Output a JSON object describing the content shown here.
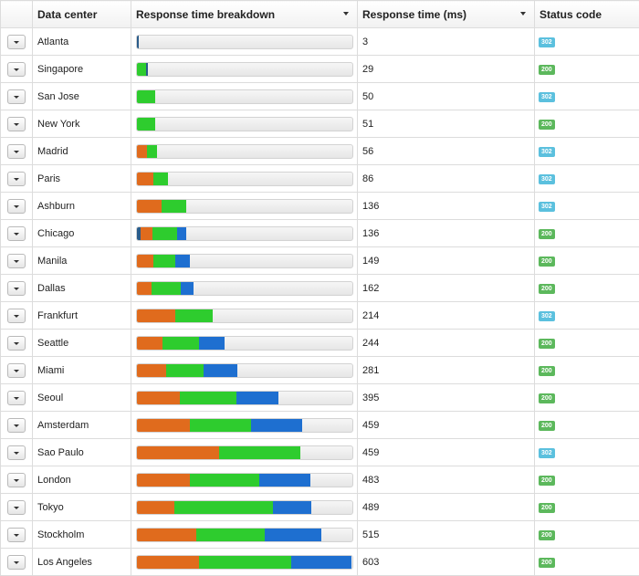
{
  "colors": {
    "dns": "#e06b1d",
    "connect": "#2ecc2e",
    "transfer": "#1e6fd0",
    "extra": "#2a5c8a",
    "status_200": "#5cb85c",
    "status_302": "#5bc0de"
  },
  "headers": {
    "data_center": "Data center",
    "breakdown": "Response time breakdown",
    "response_time": "Response time (ms)",
    "status": "Status code"
  },
  "max_time": 603,
  "rows": [
    {
      "name": "Atlanta",
      "time": "3",
      "status": "302",
      "segments": [
        {
          "c": "extra",
          "v": 3
        }
      ]
    },
    {
      "name": "Singapore",
      "time": "29",
      "status": "200",
      "segments": [
        {
          "c": "connect",
          "v": 25
        },
        {
          "c": "extra",
          "v": 4
        }
      ]
    },
    {
      "name": "San Jose",
      "time": "50",
      "status": "302",
      "segments": [
        {
          "c": "connect",
          "v": 50
        }
      ]
    },
    {
      "name": "New York",
      "time": "51",
      "status": "200",
      "segments": [
        {
          "c": "connect",
          "v": 51
        }
      ]
    },
    {
      "name": "Madrid",
      "time": "56",
      "status": "302",
      "segments": [
        {
          "c": "dns",
          "v": 27
        },
        {
          "c": "connect",
          "v": 29
        }
      ]
    },
    {
      "name": "Paris",
      "time": "86",
      "status": "302",
      "segments": [
        {
          "c": "dns",
          "v": 45
        },
        {
          "c": "connect",
          "v": 41
        }
      ]
    },
    {
      "name": "Ashburn",
      "time": "136",
      "status": "302",
      "segments": [
        {
          "c": "dns",
          "v": 68
        },
        {
          "c": "connect",
          "v": 68
        }
      ]
    },
    {
      "name": "Chicago",
      "time": "136",
      "status": "200",
      "segments": [
        {
          "c": "extra",
          "v": 10
        },
        {
          "c": "dns",
          "v": 33
        },
        {
          "c": "connect",
          "v": 68
        },
        {
          "c": "transfer",
          "v": 25
        }
      ]
    },
    {
      "name": "Manila",
      "time": "149",
      "status": "200",
      "segments": [
        {
          "c": "dns",
          "v": 46
        },
        {
          "c": "connect",
          "v": 61
        },
        {
          "c": "transfer",
          "v": 42
        }
      ]
    },
    {
      "name": "Dallas",
      "time": "162",
      "status": "200",
      "segments": [
        {
          "c": "dns",
          "v": 42
        },
        {
          "c": "connect",
          "v": 83
        },
        {
          "c": "transfer",
          "v": 37
        }
      ]
    },
    {
      "name": "Frankfurt",
      "time": "214",
      "status": "302",
      "segments": [
        {
          "c": "dns",
          "v": 108
        },
        {
          "c": "connect",
          "v": 106
        }
      ]
    },
    {
      "name": "Seattle",
      "time": "244",
      "status": "200",
      "segments": [
        {
          "c": "dns",
          "v": 72
        },
        {
          "c": "connect",
          "v": 101
        },
        {
          "c": "transfer",
          "v": 71
        }
      ]
    },
    {
      "name": "Miami",
      "time": "281",
      "status": "200",
      "segments": [
        {
          "c": "dns",
          "v": 83
        },
        {
          "c": "connect",
          "v": 104
        },
        {
          "c": "transfer",
          "v": 94
        }
      ]
    },
    {
      "name": "Seoul",
      "time": "395",
      "status": "200",
      "segments": [
        {
          "c": "dns",
          "v": 119
        },
        {
          "c": "connect",
          "v": 159
        },
        {
          "c": "transfer",
          "v": 117
        }
      ]
    },
    {
      "name": "Amsterdam",
      "time": "459",
      "status": "200",
      "segments": [
        {
          "c": "dns",
          "v": 147
        },
        {
          "c": "connect",
          "v": 170
        },
        {
          "c": "transfer",
          "v": 142
        }
      ]
    },
    {
      "name": "Sao Paulo",
      "time": "459",
      "status": "302",
      "segments": [
        {
          "c": "dns",
          "v": 231
        },
        {
          "c": "connect",
          "v": 228
        }
      ]
    },
    {
      "name": "London",
      "time": "483",
      "status": "200",
      "segments": [
        {
          "c": "dns",
          "v": 147
        },
        {
          "c": "connect",
          "v": 193
        },
        {
          "c": "transfer",
          "v": 143
        }
      ]
    },
    {
      "name": "Tokyo",
      "time": "489",
      "status": "200",
      "segments": [
        {
          "c": "dns",
          "v": 106
        },
        {
          "c": "connect",
          "v": 276
        },
        {
          "c": "transfer",
          "v": 107
        }
      ]
    },
    {
      "name": "Stockholm",
      "time": "515",
      "status": "200",
      "segments": [
        {
          "c": "dns",
          "v": 165
        },
        {
          "c": "connect",
          "v": 192
        },
        {
          "c": "transfer",
          "v": 158
        }
      ]
    },
    {
      "name": "Los Angeles",
      "time": "603",
      "status": "200",
      "segments": [
        {
          "c": "dns",
          "v": 175
        },
        {
          "c": "connect",
          "v": 259
        },
        {
          "c": "transfer",
          "v": 169
        }
      ]
    }
  ]
}
